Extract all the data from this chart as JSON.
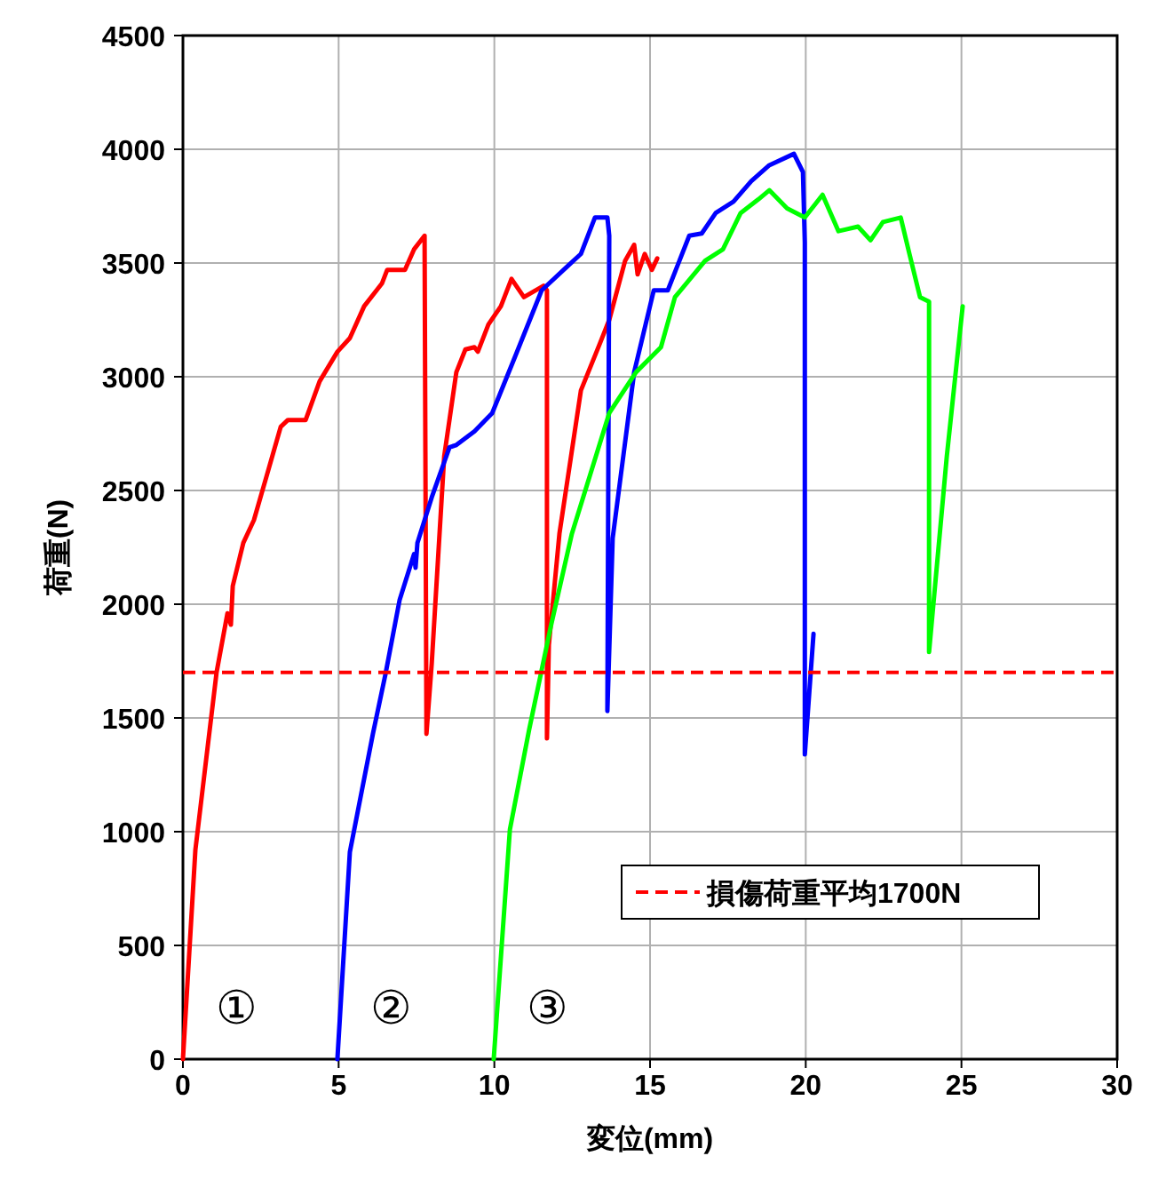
{
  "chart_data": {
    "type": "line",
    "xlabel": "変位(mm)",
    "ylabel": "荷重(N)",
    "xlim": [
      0,
      30
    ],
    "xticks": [
      0,
      5,
      10,
      15,
      20,
      25,
      30
    ],
    "ylim": [
      0,
      4500
    ],
    "yticks": [
      0,
      500,
      1000,
      1500,
      2000,
      2500,
      3000,
      3500,
      4000,
      4500
    ],
    "grid": true,
    "legend": "bottom right",
    "marker": "none",
    "line_style": "solid",
    "ref_lines": [
      {
        "axis": "y",
        "value": 1700,
        "label": "損傷荷重平均1700N",
        "color": "#ff0000",
        "line_style": "dashed"
      }
    ],
    "series": [
      {
        "name": "①",
        "color": "#ff0000",
        "x": [
          0,
          0.4,
          0.8,
          1.08,
          1.43,
          1.54,
          1.6,
          1.94,
          2.28,
          2.68,
          3.14,
          3.37,
          3.94,
          4.39,
          4.96,
          5.36,
          5.82,
          6.39,
          6.56,
          7.13,
          7.42,
          7.76,
          7.82,
          7.99,
          8.39,
          8.78,
          9.07,
          9.36,
          9.47,
          9.81,
          10.21,
          10.55,
          10.95,
          11.58,
          11.69,
          11.69,
          11.75,
          12.09,
          12.78,
          13.4,
          13.69,
          14.2,
          14.49,
          14.6,
          14.83,
          15.06,
          15.23
        ],
        "values": [
          0,
          920,
          1380,
          1700,
          1960,
          1910,
          2080,
          2270,
          2370,
          2560,
          2780,
          2810,
          2810,
          2980,
          3110,
          3170,
          3310,
          3410,
          3470,
          3470,
          3560,
          3620,
          1430,
          1740,
          2650,
          3020,
          3120,
          3130,
          3110,
          3230,
          3310,
          3430,
          3350,
          3400,
          3380,
          1410,
          1820,
          2310,
          2940,
          3150,
          3250,
          3510,
          3580,
          3450,
          3540,
          3470,
          3520
        ]
      },
      {
        "name": "②",
        "color": "#0000ff",
        "x": [
          4.96,
          5.36,
          6.1,
          6.5,
          6.96,
          7.42,
          7.47,
          7.53,
          7.99,
          8.56,
          8.78,
          9.36,
          9.93,
          10.67,
          11.52,
          12.38,
          12.78,
          13.23,
          13.63,
          13.69,
          13.63,
          13.8,
          14.49,
          15.12,
          15.57,
          16.26,
          16.66,
          17.11,
          17.68,
          18.25,
          18.83,
          19.62,
          19.91,
          19.97,
          19.97,
          20.25
        ],
        "values": [
          0,
          910,
          1430,
          1690,
          2020,
          2220,
          2160,
          2270,
          2470,
          2690,
          2700,
          2760,
          2840,
          3090,
          3380,
          3490,
          3540,
          3700,
          3700,
          3620,
          1530,
          2290,
          3020,
          3380,
          3380,
          3620,
          3630,
          3720,
          3770,
          3860,
          3930,
          3980,
          3900,
          3590,
          1340,
          1870
        ]
      },
      {
        "name": "③",
        "color": "#00ff00",
        "x": [
          9.98,
          10.5,
          11.12,
          11.81,
          12.49,
          13.69,
          14.55,
          15.35,
          15.8,
          16.77,
          17.34,
          17.91,
          18.48,
          18.83,
          19.4,
          19.97,
          20.54,
          21.05,
          21.68,
          22.08,
          22.48,
          23.05,
          23.33,
          23.67,
          23.96,
          23.96,
          24.53,
          25.04
        ],
        "values": [
          0,
          1010,
          1450,
          1900,
          2310,
          2840,
          3020,
          3130,
          3350,
          3510,
          3560,
          3720,
          3780,
          3820,
          3740,
          3700,
          3800,
          3640,
          3660,
          3600,
          3680,
          3700,
          3540,
          3350,
          3330,
          1790,
          2650,
          3310
        ]
      }
    ]
  }
}
